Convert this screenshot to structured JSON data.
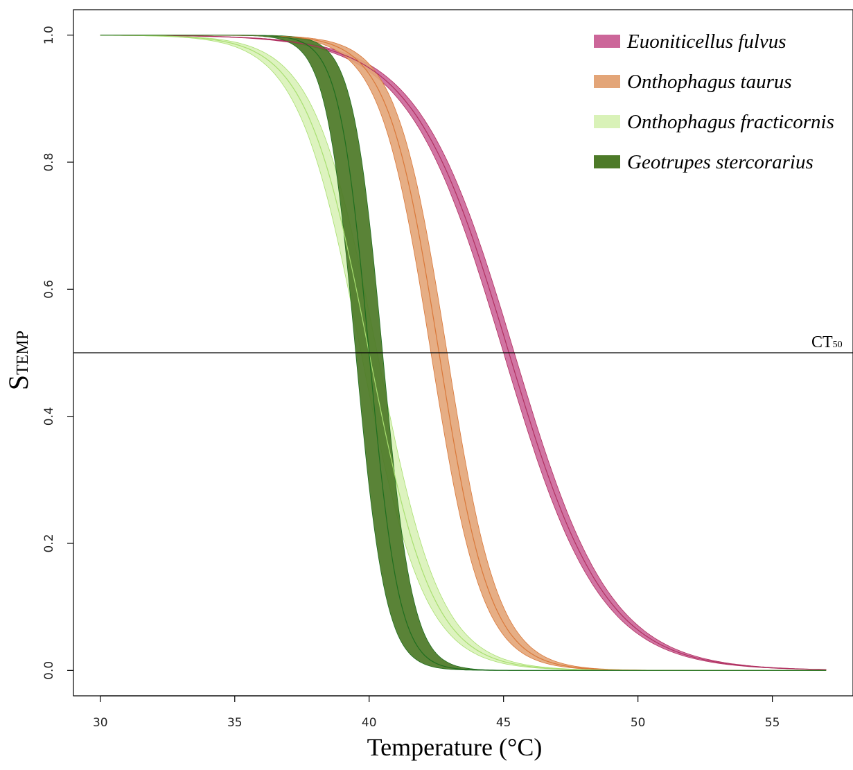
{
  "chart_data": {
    "type": "line",
    "title": "",
    "xlabel": "Temperature (°C)",
    "ylabel_main": "S",
    "ylabel_sub": "TEMP",
    "xlim": [
      29,
      58
    ],
    "ylim": [
      -0.04,
      1.04
    ],
    "xticks": [
      30,
      35,
      40,
      45,
      50,
      55
    ],
    "yticks": [
      0.0,
      0.2,
      0.4,
      0.6,
      0.8,
      1.0
    ],
    "xtick_labels": [
      "30",
      "35",
      "40",
      "45",
      "50",
      "55"
    ],
    "ytick_labels": [
      "0.0",
      "0.2",
      "0.4",
      "0.6",
      "0.8",
      "1.0"
    ],
    "grid": false,
    "legend_position": "top-right",
    "reference_line": {
      "y": 0.5,
      "label_main": "CT",
      "label_sub": "50"
    },
    "x_range": [
      30,
      57
    ],
    "series": [
      {
        "name": "Euoniticellus fulvus",
        "ct50": 45.2,
        "ct50_low": 45.0,
        "ct50_high": 45.4,
        "slope": 0.56,
        "band_color": "#cc6699",
        "line_color": "#b03060"
      },
      {
        "name": "Onthophagus taurus",
        "ct50": 42.6,
        "ct50_low": 42.3,
        "ct50_high": 42.9,
        "slope": 1.05,
        "band_color": "#e3a578",
        "line_color": "#d9783a"
      },
      {
        "name": "Onthophagus fracticornis",
        "ct50": 40.0,
        "ct50_low": 39.7,
        "ct50_high": 40.3,
        "slope": 0.85,
        "band_color": "#d9f2b8",
        "line_color": "#a8df70"
      },
      {
        "name": "Geotrupes stercorarius",
        "ct50": 40.0,
        "ct50_low": 39.5,
        "ct50_high": 40.5,
        "slope": 1.8,
        "band_color": "#4d7a28",
        "line_color": "#1f6e1f"
      }
    ]
  }
}
